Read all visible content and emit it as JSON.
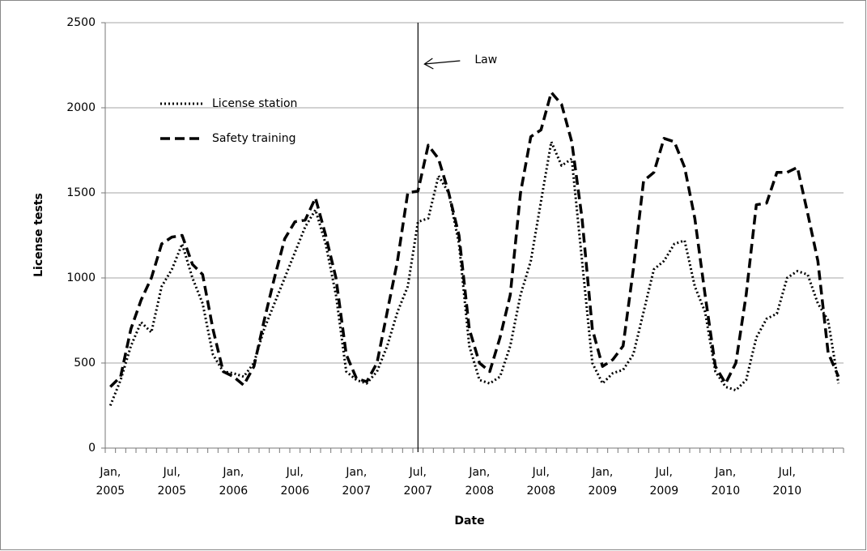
{
  "chart_data": {
    "type": "line",
    "x_label": "Date",
    "y_label": "License tests",
    "categories": [
      "Jan, 2005",
      null,
      null,
      null,
      null,
      null,
      "Jul, 2005",
      null,
      null,
      null,
      null,
      null,
      "Jan, 2006",
      null,
      null,
      null,
      null,
      null,
      "Jul, 2006",
      null,
      null,
      null,
      null,
      null,
      "Jan, 2007",
      null,
      null,
      null,
      null,
      null,
      "Jul, 2007",
      null,
      null,
      null,
      null,
      null,
      "Jan, 2008",
      null,
      null,
      null,
      null,
      null,
      "Jul, 2008",
      null,
      null,
      null,
      null,
      null,
      "Jan, 2009",
      null,
      null,
      null,
      null,
      null,
      "Jul, 2009",
      null,
      null,
      null,
      null,
      null,
      "Jan, 2010",
      null,
      null,
      null,
      null,
      null,
      "Jul, 2010",
      null,
      null,
      null,
      null,
      null
    ],
    "series": [
      {
        "name": "License station",
        "color": "#000000",
        "dash": "dotted",
        "values": [
          250,
          400,
          600,
          740,
          680,
          950,
          1050,
          1200,
          1000,
          850,
          550,
          450,
          440,
          420,
          500,
          700,
          850,
          1000,
          1150,
          1300,
          1400,
          1200,
          900,
          450,
          400,
          380,
          450,
          600,
          800,
          950,
          1330,
          1350,
          1600,
          1500,
          1200,
          600,
          400,
          380,
          420,
          600,
          900,
          1100,
          1450,
          1800,
          1660,
          1700,
          1100,
          500,
          380,
          440,
          460,
          550,
          800,
          1050,
          1100,
          1200,
          1220,
          950,
          800,
          450,
          360,
          340,
          400,
          650,
          760,
          790,
          1000,
          1040,
          1020,
          850,
          750,
          380
        ]
      },
      {
        "name": "Safety training",
        "color": "#000000",
        "dash": "dashed",
        "values": [
          360,
          420,
          700,
          870,
          1000,
          1200,
          1240,
          1250,
          1080,
          1020,
          700,
          450,
          420,
          370,
          480,
          750,
          1000,
          1230,
          1330,
          1340,
          1470,
          1250,
          1000,
          550,
          410,
          390,
          500,
          800,
          1100,
          1500,
          1510,
          1780,
          1700,
          1500,
          1250,
          700,
          500,
          450,
          650,
          900,
          1500,
          1830,
          1870,
          2090,
          2020,
          1800,
          1350,
          700,
          480,
          520,
          600,
          1050,
          1570,
          1620,
          1820,
          1800,
          1650,
          1350,
          900,
          480,
          380,
          500,
          900,
          1430,
          1440,
          1620,
          1620,
          1650,
          1380,
          1100,
          560,
          420
        ]
      }
    ],
    "annotation": {
      "text": "Law",
      "x": "Jul, 2007"
    },
    "ylim": [
      0,
      2500
    ],
    "yticks": [
      0,
      500,
      1000,
      1500,
      2000,
      2500
    ],
    "grid": true
  }
}
